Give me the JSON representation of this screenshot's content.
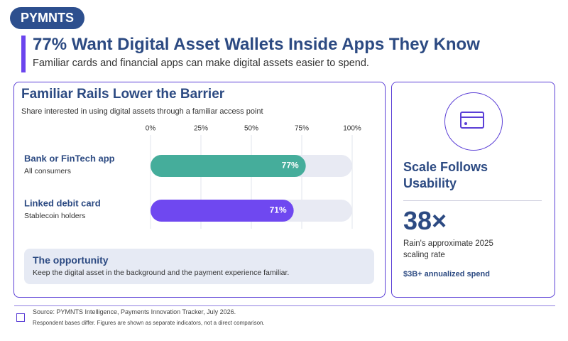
{
  "brand": "PYMNTS",
  "header": {
    "title": "77% Want Digital Asset Wallets Inside Apps They Know",
    "subtitle": "Familiar cards and financial apps can make digital assets easier to spend."
  },
  "chart_data": {
    "type": "bar",
    "orientation": "horizontal",
    "title": "Familiar Rails Lower the Barrier",
    "subtitle": "Share interested in using digital assets through a familiar access point",
    "categories": [
      "Bank or FinTech app",
      "Linked debit card"
    ],
    "category_notes": [
      "All consumers",
      "Stablecoin holders"
    ],
    "values": [
      77,
      71
    ],
    "value_labels": [
      "77%",
      "71%"
    ],
    "colors": [
      "#45ad9b",
      "#6f48f0"
    ],
    "xlim": [
      0,
      100
    ],
    "xticks": [
      {
        "value": 0,
        "label": "0%"
      },
      {
        "value": 25,
        "label": "25%"
      },
      {
        "value": 50,
        "label": "50%"
      },
      {
        "value": 75,
        "label": "75%"
      },
      {
        "value": 100,
        "label": "100%"
      }
    ],
    "grid": true
  },
  "callout": {
    "title": "The opportunity",
    "text": "Keep the digital asset in the background and the payment experience familiar."
  },
  "side": {
    "title": "Scale Follows Usability",
    "stat": "38×",
    "stat_label": "Rain's approximate 2025 scaling rate",
    "detail": "$3B+ annualized spend"
  },
  "footer": {
    "source": "Source: PYMNTS Intelligence, Payments Innovation Tracker, July 2026.",
    "note": "Respondent bases differ. Figures are shown as separate indicators, not a direct comparison."
  }
}
